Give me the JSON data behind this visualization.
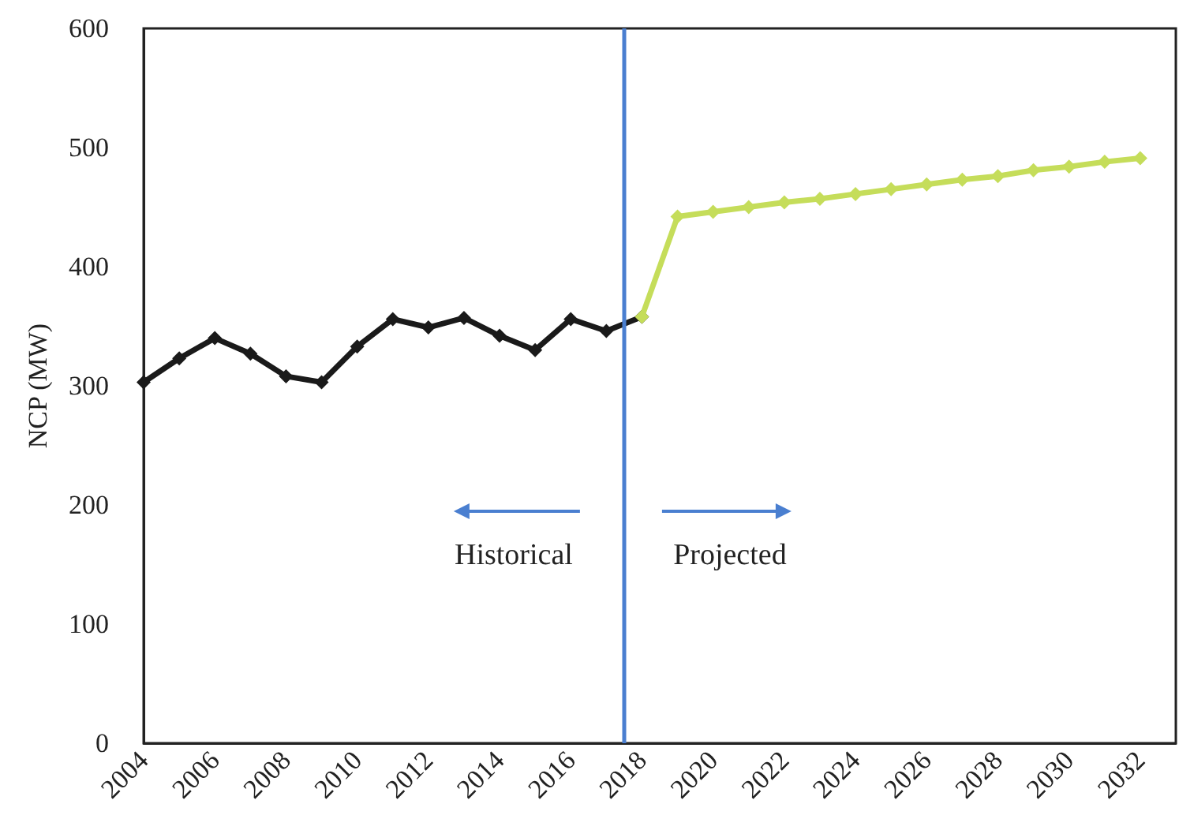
{
  "chart_data": {
    "type": "line",
    "ylabel": "NCP (MW)",
    "marker": "diamond",
    "grid": false,
    "xlim": [
      2004,
      2033
    ],
    "xticks": [
      2004,
      2006,
      2008,
      2010,
      2012,
      2014,
      2016,
      2018,
      2020,
      2022,
      2024,
      2026,
      2028,
      2030,
      2032
    ],
    "ylim": [
      0,
      600
    ],
    "yticks": [
      0,
      100,
      200,
      300,
      400,
      500,
      600
    ],
    "series": [
      {
        "color": "#1a1a1a",
        "x": [
          2004,
          2005,
          2006,
          2007,
          2008,
          2009,
          2010,
          2011,
          2012,
          2013,
          2014,
          2015,
          2016,
          2017,
          2018
        ],
        "values": [
          303,
          323,
          340,
          327,
          308,
          303,
          333,
          356,
          349,
          357,
          342,
          330,
          356,
          346,
          358
        ]
      },
      {
        "color": "#c5dd5a",
        "x": [
          2018,
          2019,
          2020,
          2021,
          2022,
          2023,
          2024,
          2025,
          2026,
          2027,
          2028,
          2029,
          2030,
          2031,
          2032
        ],
        "values": [
          358,
          442,
          446,
          450,
          454,
          457,
          461,
          465,
          469,
          473,
          476,
          481,
          484,
          488,
          491
        ]
      }
    ],
    "ref_lines": [
      {
        "axis": "x",
        "value": 2017.5,
        "color": "#4a7fd0"
      }
    ],
    "annotations": [
      "Historical",
      "Projected"
    ]
  }
}
